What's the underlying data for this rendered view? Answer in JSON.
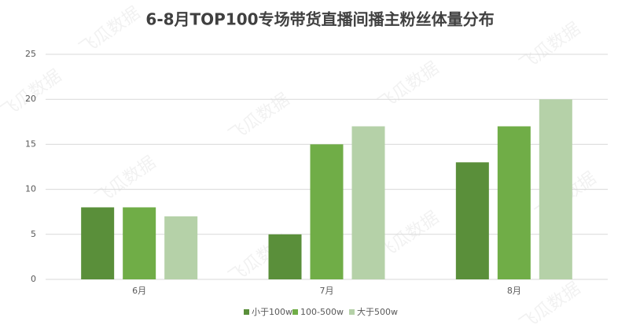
{
  "chart_data": {
    "type": "bar",
    "title": "6-8月TOP100专场带货直播间播主粉丝体量分布",
    "watermark": "飞瓜数据",
    "categories": [
      "6月",
      "7月",
      "8月"
    ],
    "series": [
      {
        "name": "小于100w",
        "color": "#5a8f3a",
        "values": [
          8,
          5,
          13
        ]
      },
      {
        "name": "100-500w",
        "color": "#70ad47",
        "values": [
          8,
          15,
          17
        ]
      },
      {
        "name": "大于500w",
        "color": "#b5d1a8",
        "values": [
          7,
          17,
          20
        ]
      }
    ],
    "ylim": [
      0,
      25
    ],
    "yticks": [
      0,
      5,
      10,
      15,
      20,
      25
    ],
    "grid": true,
    "legend": "bottom"
  }
}
